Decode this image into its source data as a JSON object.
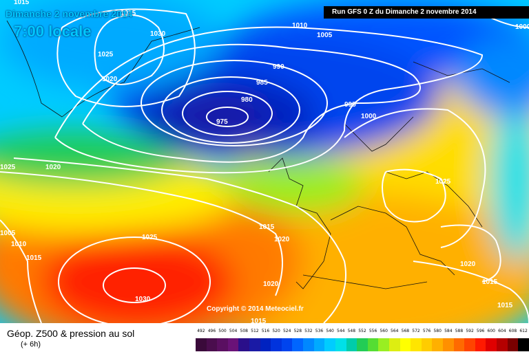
{
  "header": {
    "date_line": "Dimanche 2 novembre 2014",
    "time_line": "7:00 locale",
    "run_line": "Run GFS 0 Z du Dimanche 2 novembre 2014"
  },
  "copyright": "Copyright © 2014 Meteociel.fr",
  "legend": {
    "title": "Géop. Z500 & pression au sol",
    "subtitle": "(+ 6h)",
    "scale_values": [
      "492",
      "496",
      "500",
      "504",
      "508",
      "512",
      "516",
      "520",
      "524",
      "528",
      "532",
      "536",
      "540",
      "544",
      "548",
      "552",
      "556",
      "560",
      "564",
      "568",
      "572",
      "576",
      "580",
      "584",
      "588",
      "592",
      "596",
      "600",
      "604",
      "608",
      "612"
    ],
    "scale_colors": [
      "#3a0a3a",
      "#4a0d4d",
      "#5a0f61",
      "#6a1278",
      "#2a0f8a",
      "#1a1aa5",
      "#0022c0",
      "#0033dd",
      "#0044ee",
      "#0066ff",
      "#0088ff",
      "#00aaff",
      "#00ccff",
      "#00e0e8",
      "#00ccaa",
      "#22cc55",
      "#55dd33",
      "#99ee22",
      "#ddee11",
      "#ffff00",
      "#ffe500",
      "#ffcc00",
      "#ffb000",
      "#ff9000",
      "#ff6a00",
      "#ff4400",
      "#ff1a00",
      "#e00000",
      "#b40000",
      "#7a0000",
      "#000000"
    ]
  },
  "isobar_labels": [
    {
      "text": "1030"
    },
    {
      "text": "1025"
    },
    {
      "text": "1020"
    },
    {
      "text": "1015"
    },
    {
      "text": "1010"
    },
    {
      "text": "1005"
    },
    {
      "text": "990"
    },
    {
      "text": "985"
    },
    {
      "text": "980"
    },
    {
      "text": "975"
    },
    {
      "text": "995"
    },
    {
      "text": "1000"
    },
    {
      "text": "1000"
    },
    {
      "text": "1025"
    },
    {
      "text": "1020"
    },
    {
      "text": "1025"
    },
    {
      "text": "1005"
    },
    {
      "text": "1010"
    },
    {
      "text": "1015"
    },
    {
      "text": "1025"
    },
    {
      "text": "1015"
    },
    {
      "text": "1020"
    },
    {
      "text": "1030"
    },
    {
      "text": "1020"
    },
    {
      "text": "1015"
    },
    {
      "text": "1020"
    },
    {
      "text": "1015"
    },
    {
      "text": "1015"
    },
    {
      "text": "1025"
    }
  ]
}
